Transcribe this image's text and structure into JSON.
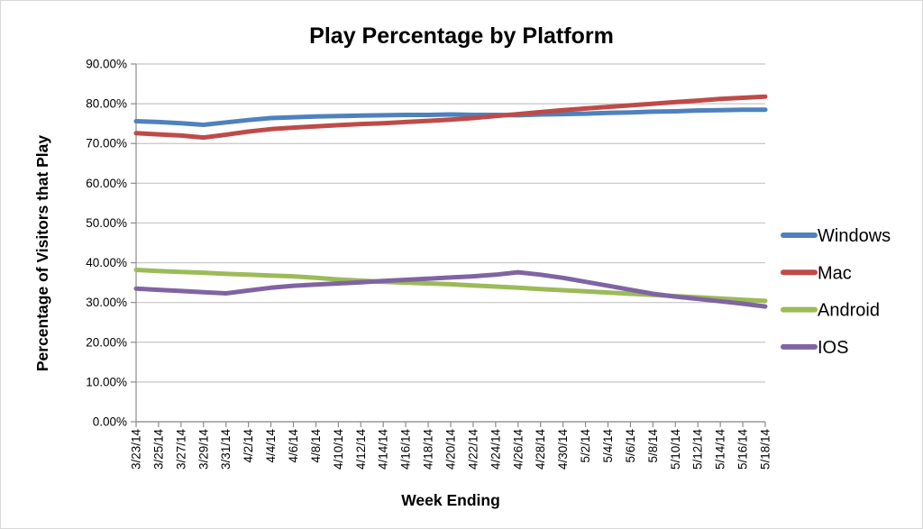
{
  "chart": {
    "title": "Play Percentage by Platform",
    "y_axis_title": "Percentage of Visitors that Play",
    "x_axis_title": "Week Ending",
    "text_color": "#000000",
    "gridline_color": "#c6c6c6",
    "axis_line_color": "#8c8c8c",
    "background_color": "#ffffff"
  },
  "chart_data": {
    "type": "line",
    "title": "Play Percentage by Platform",
    "xlabel": "Week Ending",
    "ylabel": "Percentage of Visitors that Play",
    "ylim": [
      0,
      90
    ],
    "grid": true,
    "legend_position": "right",
    "y_tick_labels": [
      "0.00%",
      "10.00%",
      "20.00%",
      "30.00%",
      "40.00%",
      "50.00%",
      "60.00%",
      "70.00%",
      "80.00%",
      "90.00%"
    ],
    "categories": [
      "3/23/14",
      "3/25/14",
      "3/27/14",
      "3/29/14",
      "3/31/14",
      "4/2/14",
      "4/4/14",
      "4/6/14",
      "4/8/14",
      "4/10/14",
      "4/12/14",
      "4/14/14",
      "4/16/14",
      "4/18/14",
      "4/20/14",
      "4/22/14",
      "4/24/14",
      "4/26/14",
      "4/28/14",
      "4/30/14",
      "5/2/14",
      "5/4/14",
      "5/6/14",
      "5/8/14",
      "5/10/14",
      "5/12/14",
      "5/14/14",
      "5/16/14",
      "5/18/14"
    ],
    "series": [
      {
        "name": "Windows",
        "color": "#4F81BD",
        "values": [
          75.6,
          75.4,
          75.1,
          74.7,
          75.3,
          75.9,
          76.4,
          76.6,
          76.8,
          76.9,
          77.0,
          77.1,
          77.2,
          77.2,
          77.3,
          77.2,
          77.2,
          77.1,
          77.3,
          77.4,
          77.5,
          77.7,
          77.8,
          78.0,
          78.1,
          78.3,
          78.4,
          78.5,
          78.5
        ]
      },
      {
        "name": "Mac",
        "color": "#BE4B48",
        "values": [
          72.6,
          72.3,
          72.0,
          71.5,
          72.2,
          73.0,
          73.6,
          74.0,
          74.3,
          74.6,
          74.9,
          75.1,
          75.4,
          75.7,
          76.0,
          76.4,
          76.9,
          77.4,
          77.9,
          78.4,
          78.8,
          79.2,
          79.6,
          80.0,
          80.4,
          80.8,
          81.2,
          81.5,
          81.8
        ]
      },
      {
        "name": "Android",
        "color": "#9BBB59",
        "values": [
          38.2,
          37.9,
          37.7,
          37.5,
          37.2,
          37.0,
          36.8,
          36.6,
          36.2,
          35.8,
          35.5,
          35.2,
          35.0,
          34.8,
          34.6,
          34.3,
          34.0,
          33.7,
          33.4,
          33.1,
          32.8,
          32.5,
          32.2,
          31.9,
          31.6,
          31.3,
          31.0,
          30.7,
          30.4
        ]
      },
      {
        "name": "IOS",
        "color": "#8064A2",
        "values": [
          33.5,
          33.2,
          32.9,
          32.6,
          32.3,
          33.0,
          33.7,
          34.2,
          34.5,
          34.8,
          35.1,
          35.4,
          35.7,
          36.0,
          36.3,
          36.6,
          37.0,
          37.6,
          37.0,
          36.2,
          35.2,
          34.2,
          33.2,
          32.2,
          31.5,
          30.9,
          30.3,
          29.7,
          29.0
        ]
      }
    ]
  }
}
